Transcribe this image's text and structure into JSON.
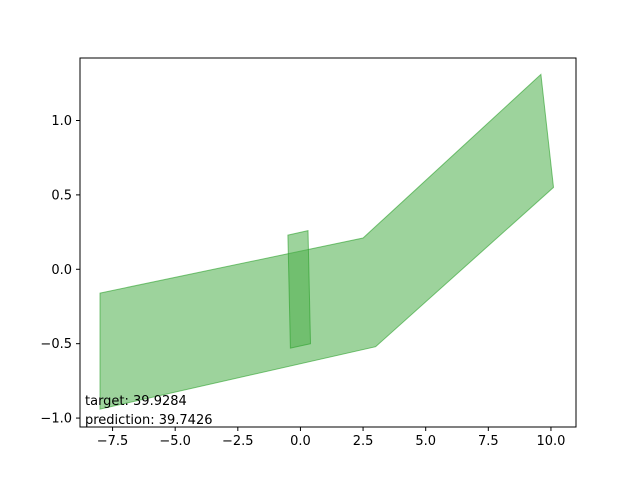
{
  "chart_data": {
    "type": "area",
    "title": "",
    "xlabel": "",
    "ylabel": "",
    "xlim": [
      -8.8,
      11.0
    ],
    "ylim": [
      -1.06,
      1.42
    ],
    "grid": false,
    "xticks": [
      -7.5,
      -5.0,
      -2.5,
      0.0,
      2.5,
      5.0,
      7.5,
      10.0
    ],
    "xtick_labels": [
      "−7.5",
      "−5.0",
      "−2.5",
      "0.0",
      "2.5",
      "5.0",
      "7.5",
      "10.0"
    ],
    "yticks": [
      -1.0,
      -0.5,
      0.0,
      0.5,
      1.0
    ],
    "ytick_labels": [
      "−1.0",
      "−0.5",
      "0.0",
      "0.5",
      "1.0"
    ],
    "fill_color": "#4daf4a",
    "edge_color": "#2ca02c",
    "polygons": [
      {
        "points": [
          [
            -8.0,
            -0.16
          ],
          [
            2.5,
            0.21
          ],
          [
            9.6,
            1.31
          ],
          [
            10.1,
            0.55
          ],
          [
            3.0,
            -0.52
          ],
          [
            -8.0,
            -0.94
          ]
        ]
      },
      {
        "points": [
          [
            -0.5,
            0.23
          ],
          [
            0.3,
            0.26
          ],
          [
            0.4,
            -0.5
          ],
          [
            -0.4,
            -0.53
          ]
        ]
      }
    ],
    "annotations": {
      "target": "target: 39.9284",
      "prediction": "prediction: 39.7426"
    }
  }
}
